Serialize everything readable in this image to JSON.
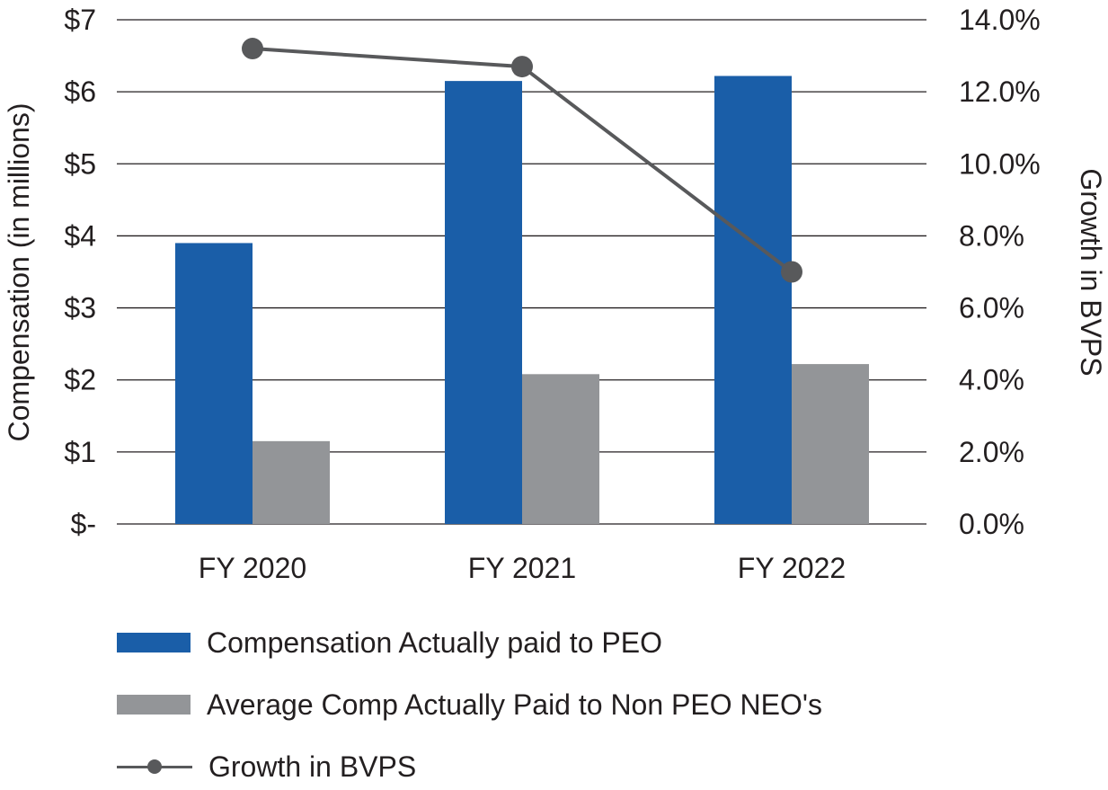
{
  "chart_data": {
    "type": "bar",
    "categories": [
      "FY 2020",
      "FY 2021",
      "FY 2022"
    ],
    "series": [
      {
        "name": "Compensation Actually paid to PEO",
        "type": "bar",
        "axis": "left",
        "color": "#1a5ea8",
        "values": [
          3.9,
          6.15,
          6.22
        ]
      },
      {
        "name": "Average Comp Actually Paid to Non PEO NEO's",
        "type": "bar",
        "axis": "left",
        "color": "#939598",
        "values": [
          1.15,
          2.08,
          2.22
        ]
      },
      {
        "name": "Growth in BVPS",
        "type": "line",
        "axis": "right",
        "color": "#58595b",
        "values": [
          13.2,
          12.7,
          7.0
        ]
      }
    ],
    "ylabel": "Compensation (in millions)",
    "y2label": "Growth in BVPS",
    "ylim": [
      0,
      7
    ],
    "y2lim": [
      0,
      14
    ],
    "yticks": [
      {
        "value": 0,
        "label": "$-"
      },
      {
        "value": 1,
        "label": "$1"
      },
      {
        "value": 2,
        "label": "$2"
      },
      {
        "value": 3,
        "label": "$3"
      },
      {
        "value": 4,
        "label": "$4"
      },
      {
        "value": 5,
        "label": "$5"
      },
      {
        "value": 6,
        "label": "$6"
      },
      {
        "value": 7,
        "label": "$7"
      }
    ],
    "y2ticks": [
      {
        "value": 0,
        "label": "0.0%"
      },
      {
        "value": 2,
        "label": "2.0%"
      },
      {
        "value": 4,
        "label": "4.0%"
      },
      {
        "value": 6,
        "label": "6.0%"
      },
      {
        "value": 8,
        "label": "8.0%"
      },
      {
        "value": 10,
        "label": "10.0%"
      },
      {
        "value": 12,
        "label": "12.0%"
      },
      {
        "value": 14,
        "label": "14.0%"
      }
    ],
    "grid": true,
    "legend_position": "bottom"
  },
  "legend": {
    "items": [
      {
        "label": "Compensation Actually paid to PEO",
        "color": "#1a5ea8",
        "kind": "bar"
      },
      {
        "label": "Average Comp Actually Paid to Non PEO NEO's",
        "color": "#939598",
        "kind": "bar"
      },
      {
        "label": "Growth in BVPS",
        "color": "#58595b",
        "kind": "line"
      }
    ]
  }
}
